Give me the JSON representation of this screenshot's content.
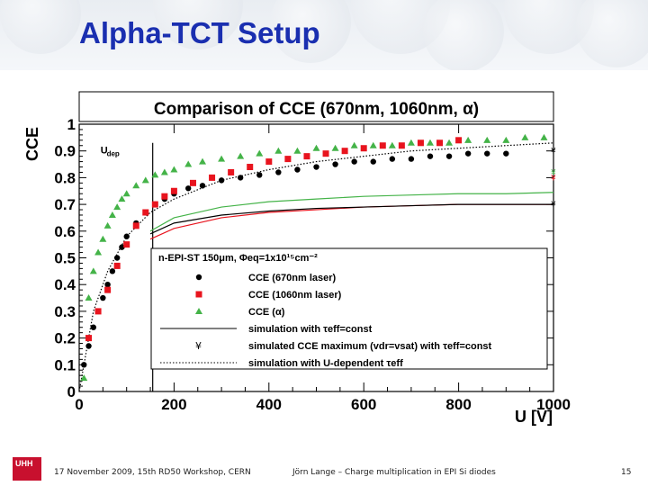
{
  "slide": {
    "title": "Alpha-TCT Setup",
    "footer_date": "17 November 2009,  15th RD50 Workshop, CERN",
    "footer_author": "Jörn Lange – Charge multiplication in EPI Si diodes",
    "page_number": "15",
    "logo_text": "UHH",
    "title_color": "#1a2fb0"
  },
  "chart_data": {
    "type": "scatter",
    "title": "Comparison of CCE (670nm, 1060nm, α)",
    "xlabel": "U [V]",
    "ylabel": "CCE",
    "xlim": [
      0,
      1000
    ],
    "ylim": [
      0,
      1
    ],
    "x_ticks": [
      "0",
      "200",
      "400",
      "600",
      "800",
      "1000"
    ],
    "y_ticks": [
      "0",
      "0.1",
      "0.2",
      "0.3",
      "0.4",
      "0.5",
      "0.6",
      "0.7",
      "0.8",
      "0.9",
      "1"
    ],
    "annotation_udep": "U",
    "annotation_udep_sub": "dep",
    "udep_value": 155,
    "legend": {
      "header": "n-EPI-ST 150μm, Φeq=1x10¹⁵cm⁻²",
      "placement": "center-right",
      "entries": [
        "CCE (670nm laser)",
        "CCE (1060nm laser)",
        "CCE (α)",
        "simulation with τeff=const",
        "simulated CCE maximum (vdr=vsat) with τeff=const",
        "simulation with U-dependent τeff"
      ]
    },
    "series": [
      {
        "name": "CCE (670nm laser)",
        "marker": "circle",
        "color": "#000000",
        "x": [
          10,
          20,
          30,
          40,
          50,
          60,
          70,
          80,
          90,
          100,
          120,
          140,
          160,
          180,
          200,
          230,
          260,
          300,
          340,
          380,
          420,
          460,
          500,
          540,
          580,
          620,
          660,
          700,
          740,
          780,
          820,
          860,
          900
        ],
        "y": [
          0.1,
          0.17,
          0.24,
          0.3,
          0.35,
          0.4,
          0.45,
          0.5,
          0.54,
          0.58,
          0.63,
          0.67,
          0.7,
          0.72,
          0.74,
          0.76,
          0.77,
          0.79,
          0.8,
          0.81,
          0.82,
          0.83,
          0.84,
          0.85,
          0.86,
          0.86,
          0.87,
          0.87,
          0.88,
          0.88,
          0.89,
          0.89,
          0.89
        ]
      },
      {
        "name": "CCE (1060nm laser)",
        "marker": "square",
        "color": "#e8141e",
        "x": [
          20,
          40,
          60,
          80,
          100,
          120,
          140,
          160,
          180,
          200,
          240,
          280,
          320,
          360,
          400,
          440,
          480,
          520,
          560,
          600,
          640,
          680,
          720,
          760,
          800
        ],
        "y": [
          0.2,
          0.3,
          0.38,
          0.47,
          0.55,
          0.62,
          0.67,
          0.7,
          0.73,
          0.75,
          0.78,
          0.8,
          0.82,
          0.84,
          0.86,
          0.87,
          0.88,
          0.89,
          0.9,
          0.91,
          0.92,
          0.92,
          0.93,
          0.93,
          0.94
        ]
      },
      {
        "name": "CCE (α)",
        "marker": "triangle",
        "color": "#44b348",
        "x": [
          10,
          20,
          30,
          40,
          50,
          60,
          70,
          80,
          90,
          100,
          120,
          140,
          160,
          180,
          200,
          230,
          260,
          300,
          340,
          380,
          420,
          460,
          500,
          540,
          580,
          620,
          660,
          700,
          740,
          780,
          820,
          860,
          900,
          940,
          980
        ],
        "y": [
          0.05,
          0.35,
          0.45,
          0.52,
          0.57,
          0.62,
          0.66,
          0.69,
          0.72,
          0.74,
          0.77,
          0.79,
          0.81,
          0.82,
          0.83,
          0.85,
          0.86,
          0.87,
          0.88,
          0.89,
          0.9,
          0.9,
          0.91,
          0.91,
          0.92,
          0.92,
          0.92,
          0.93,
          0.93,
          0.93,
          0.94,
          0.94,
          0.94,
          0.95,
          0.95
        ]
      }
    ],
    "curves": [
      {
        "name": "simulation with τeff=const (green)",
        "color": "#44b348",
        "style": "solid",
        "x": [
          150,
          200,
          300,
          400,
          500,
          600,
          700,
          800,
          900,
          1000
        ],
        "y": [
          0.6,
          0.65,
          0.69,
          0.71,
          0.72,
          0.73,
          0.735,
          0.74,
          0.74,
          0.745
        ]
      },
      {
        "name": "simulation with τeff=const (red)",
        "color": "#e8141e",
        "style": "solid",
        "x": [
          150,
          200,
          300,
          400,
          500,
          600,
          700,
          800,
          900,
          1000
        ],
        "y": [
          0.57,
          0.61,
          0.65,
          0.67,
          0.68,
          0.69,
          0.695,
          0.7,
          0.7,
          0.7
        ]
      },
      {
        "name": "simulation with τeff=const (black)",
        "color": "#000000",
        "style": "solid",
        "x": [
          150,
          200,
          300,
          400,
          500,
          600,
          700,
          800,
          900,
          1000
        ],
        "y": [
          0.59,
          0.63,
          0.66,
          0.675,
          0.685,
          0.69,
          0.695,
          0.7,
          0.7,
          0.7
        ]
      },
      {
        "name": "simulation with U-dependent τeff",
        "color": "#000000",
        "style": "dotted",
        "x": [
          0,
          30,
          60,
          100,
          150,
          200,
          300,
          400,
          500,
          600,
          700,
          800,
          900,
          1000
        ],
        "y": [
          0.0,
          0.3,
          0.45,
          0.58,
          0.67,
          0.72,
          0.79,
          0.83,
          0.86,
          0.88,
          0.9,
          0.91,
          0.92,
          0.93
        ]
      }
    ],
    "simulated_max_markers": [
      {
        "x": 1000,
        "y": 0.9,
        "color": "#000000"
      },
      {
        "x": 1000,
        "y": 0.8,
        "color": "#e8141e"
      },
      {
        "x": 1000,
        "y": 0.82,
        "color": "#44b348"
      },
      {
        "x": 1000,
        "y": 0.7,
        "color": "#000000"
      }
    ]
  }
}
